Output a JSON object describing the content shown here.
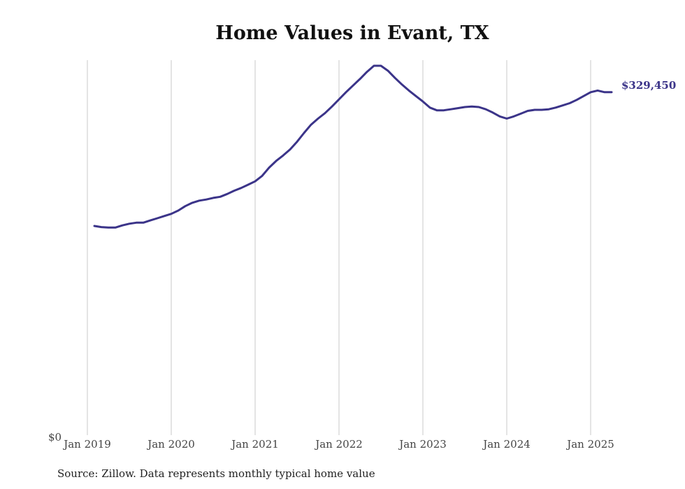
{
  "chart_data": {
    "type": "line",
    "title": "Home Values in Evant, TX",
    "xlabel": "",
    "ylabel": "",
    "x_ticks": [
      "Jan 2019",
      "Jan 2020",
      "Jan 2021",
      "Jan 2022",
      "Jan 2023",
      "Jan 2024",
      "Jan 2025"
    ],
    "y_ticks": [
      "$0"
    ],
    "ylim": [
      0,
      374000
    ],
    "grid": "vertical",
    "line_color": "#3b3489",
    "end_label": "$329,450",
    "series": [
      {
        "x": [
          "2019-01",
          "2019-02",
          "2019-03",
          "2019-04",
          "2019-05",
          "2019-06",
          "2019-07",
          "2019-08",
          "2019-09",
          "2019-10",
          "2019-11",
          "2019-12",
          "2020-01",
          "2020-02",
          "2020-03",
          "2020-04",
          "2020-05",
          "2020-06",
          "2020-07",
          "2020-08",
          "2020-09",
          "2020-10",
          "2020-11",
          "2020-12",
          "2021-01",
          "2021-02",
          "2021-03",
          "2021-04",
          "2021-05",
          "2021-06",
          "2021-07",
          "2021-08",
          "2021-09",
          "2021-10",
          "2021-11",
          "2021-12",
          "2022-01",
          "2022-02",
          "2022-03",
          "2022-04",
          "2022-05",
          "2022-06",
          "2022-07",
          "2022-08",
          "2022-09",
          "2022-10",
          "2022-11",
          "2022-12",
          "2023-01",
          "2023-02",
          "2023-03",
          "2023-04",
          "2023-05",
          "2023-06",
          "2023-07",
          "2023-08",
          "2023-09",
          "2023-10",
          "2023-11",
          "2023-12",
          "2024-01",
          "2024-02",
          "2024-03",
          "2024-04",
          "2024-05",
          "2024-06",
          "2024-07",
          "2024-08",
          "2024-09",
          "2024-10",
          "2024-11",
          "2024-12",
          "2025-01",
          "2025-02",
          "2025-03"
        ],
        "values": [
          190000,
          189000,
          188500,
          188500,
          190500,
          192000,
          193000,
          193000,
          195000,
          197000,
          199000,
          201000,
          204000,
          208000,
          211000,
          213000,
          214000,
          215500,
          216500,
          219000,
          222000,
          224500,
          227500,
          230500,
          235500,
          243000,
          249000,
          254000,
          259500,
          266500,
          274500,
          282000,
          287500,
          292500,
          298500,
          305000,
          311500,
          317500,
          323500,
          330000,
          335500,
          335500,
          331000,
          324500,
          318500,
          313000,
          308000,
          303000,
          297500,
          295000,
          295000,
          296000,
          297000,
          298000,
          298500,
          298000,
          296000,
          293000,
          289500,
          287500,
          289500,
          292000,
          294500,
          295500,
          295500,
          296000,
          297500,
          299500,
          301500,
          304500,
          308000,
          311500,
          313000,
          311500,
          329450
        ]
      }
    ]
  },
  "source_note": "Source: Zillow. Data represents monthly typical home value"
}
